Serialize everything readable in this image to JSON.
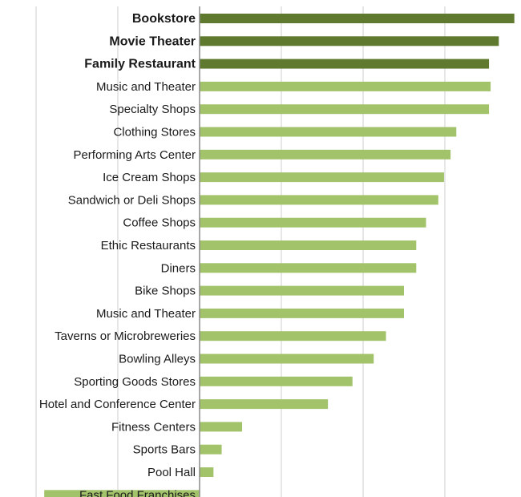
{
  "chart_data": {
    "type": "bar",
    "orientation": "horizontal",
    "categories": [
      "Bookstore",
      "Movie Theater",
      "Family Restaurant",
      "Music and Theater",
      "Specialty Shops",
      "Clothing Stores",
      "Performing Arts Center",
      "Ice Cream Shops",
      "Sandwich or Deli Shops",
      "Coffee Shops",
      "Ethic Restaurants",
      "Diners",
      "Bike Shops",
      "Music and Theater",
      "Taverns or Microbreweries",
      "Bowling Alleys",
      "Sporting Goods Stores",
      "Hotel and Conference Center",
      "Fitness Centers",
      "Sports Bars",
      "Pool Hall",
      "Fast Food Franchises"
    ],
    "values": [
      3.85,
      3.66,
      3.54,
      3.56,
      3.54,
      3.14,
      3.07,
      2.99,
      2.92,
      2.77,
      2.65,
      2.65,
      2.5,
      2.5,
      2.28,
      2.13,
      1.87,
      1.57,
      0.52,
      0.27,
      0.17,
      -1.9
    ],
    "highlighted": [
      true,
      true,
      true,
      false,
      false,
      false,
      false,
      false,
      false,
      false,
      false,
      false,
      false,
      false,
      false,
      false,
      false,
      false,
      false,
      false,
      false,
      false
    ],
    "xlim": [
      -2,
      4
    ],
    "grid": true,
    "colors": {
      "highlight": "#5f7a2e",
      "normal": "#a3c36b",
      "grid": "#cfcfcf",
      "zero_axis": "#8a8a8a"
    }
  }
}
